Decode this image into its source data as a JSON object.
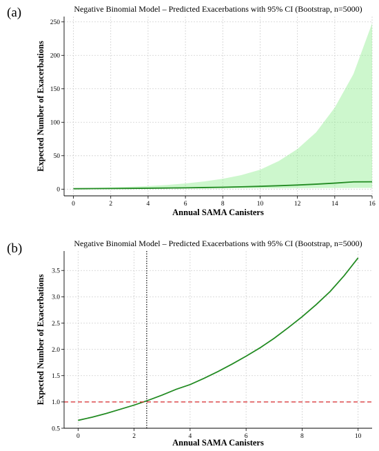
{
  "panels": [
    {
      "label": "(a)",
      "chart_data": {
        "type": "line",
        "title": "Negative Binomial Model – Predicted Exacerbations with 95% CI (Bootstrap, n=5000)",
        "xlabel": "Annual SAMA Canisters",
        "ylabel": "Expected Number of Exacerbations",
        "xlim": [
          -0.5,
          16
        ],
        "ylim": [
          -10,
          258
        ],
        "xticks": [
          0,
          2,
          4,
          6,
          8,
          10,
          12,
          14,
          16
        ],
        "yticks": [
          0,
          50,
          100,
          150,
          200,
          250
        ],
        "grid": true,
        "legend": "none",
        "series": [
          {
            "type": "band",
            "color": "#90ee90",
            "x": [
              0,
              1,
              2,
              3,
              4,
              5,
              6,
              7,
              8,
              9,
              10,
              11,
              12,
              13,
              14,
              15,
              16
            ],
            "lower": [
              0.3,
              0.4,
              0.5,
              0.6,
              0.7,
              0.8,
              0.9,
              1.0,
              1.1,
              1.2,
              1.3,
              1.4,
              1.5,
              1.6,
              1.7,
              1.8,
              1.9
            ],
            "upper": [
              1.5,
              2,
              2.7,
              3.5,
              4.7,
              6.3,
              8.6,
              11.5,
              15.5,
              21,
              29,
              42,
              60,
              85,
              122,
              172,
              248
            ]
          },
          {
            "type": "line",
            "color": "#228b22",
            "x": [
              0,
              1,
              2,
              3,
              4,
              5,
              6,
              7,
              8,
              9,
              10,
              11,
              12,
              13,
              14,
              15,
              16
            ],
            "y": [
              0.65,
              0.79,
              0.95,
              1.15,
              1.38,
              1.67,
              2.0,
              2.42,
              2.92,
              3.52,
              4.25,
              5.12,
              6.18,
              7.45,
              8.99,
              10.85,
              11.0
            ]
          }
        ]
      }
    },
    {
      "label": "(b)",
      "chart_data": {
        "type": "line",
        "title": "Negative Binomial Model – Predicted Exacerbations with 95% CI (Bootstrap, n=5000)",
        "xlabel": "Annual SAMA Canisters",
        "ylabel": "Expected Number of Exacerbations",
        "xlim": [
          -0.5,
          10.5
        ],
        "ylim": [
          0.5,
          3.87
        ],
        "xticks": [
          0,
          2,
          4,
          6,
          8,
          10
        ],
        "yticks": [
          0.5,
          1.0,
          1.5,
          2.0,
          2.5,
          3.0,
          3.5
        ],
        "grid": true,
        "legend": "none",
        "series": [
          {
            "type": "line",
            "color": "#228b22",
            "x": [
              0,
              0.5,
              1,
              1.5,
              2,
              2.5,
              3,
              3.5,
              4,
              4.5,
              5,
              5.5,
              6,
              6.5,
              7,
              7.5,
              8,
              8.5,
              9,
              9.5,
              10
            ],
            "y": [
              0.65,
              0.71,
              0.78,
              0.86,
              0.94,
              1.03,
              1.13,
              1.24,
              1.33,
              1.45,
              1.58,
              1.72,
              1.87,
              2.03,
              2.21,
              2.41,
              2.62,
              2.85,
              3.1,
              3.4,
              3.74
            ]
          },
          {
            "type": "hline",
            "color": "#d62728",
            "style": "dashed",
            "y": 1.0
          },
          {
            "type": "vline",
            "color": "#000000",
            "style": "dotted",
            "x": 2.45
          }
        ]
      }
    }
  ]
}
